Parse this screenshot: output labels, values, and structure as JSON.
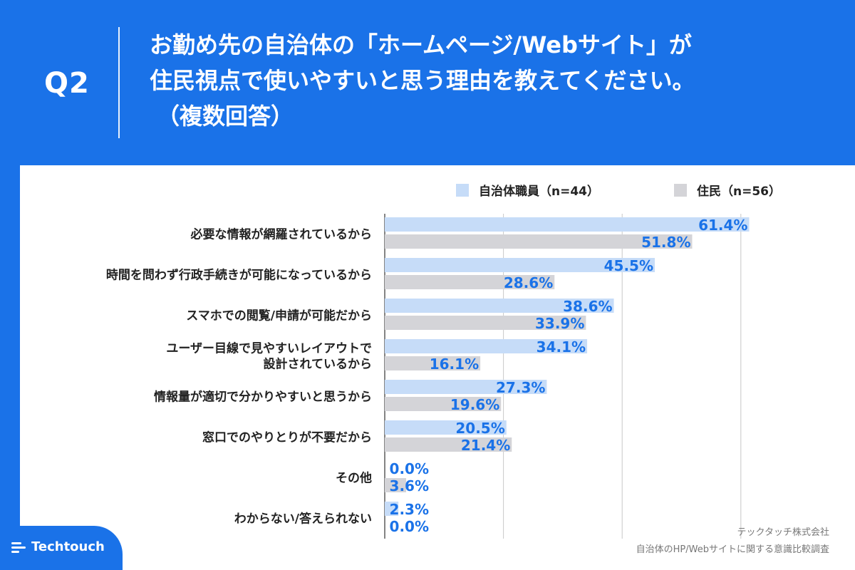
{
  "header": {
    "question_label": "Q2",
    "title_line1": "お勤め先の自治体の「ホームページ/Webサイト」が",
    "title_line2": "住民視点で使いやすいと思う理由を教えてください。",
    "title_line3": "（複数回答）"
  },
  "footer": {
    "logo_text": "Techtouch",
    "source_line1": "テックタッチ株式会社",
    "source_line2": "自治体のHP/Webサイトに関する意識比較調査"
  },
  "colors": {
    "background_blue": "#1a72e8",
    "series1": "#c6dcf8",
    "series2": "#d4d4d8",
    "value_label": "#1a72e8"
  },
  "chart_data": {
    "type": "bar",
    "orientation": "horizontal",
    "legend_position": "top-right",
    "grid": true,
    "xlim": [
      0,
      70
    ],
    "categories": [
      [
        "必要な情報が網羅されているから"
      ],
      [
        "時間を問わず行政手続きが可能になっているから"
      ],
      [
        "スマホでの閲覧/申請が可能だから"
      ],
      [
        "ユーザー目線で見やすいレイアウトで",
        "設計されているから"
      ],
      [
        "情報量が適切で分かりやすいと思うから"
      ],
      [
        "窓口でのやりとりが不要だから"
      ],
      [
        "その他"
      ],
      [
        "わからない/答えられない"
      ]
    ],
    "series": [
      {
        "name": "自治体職員（n=44）",
        "values": [
          61.4,
          45.5,
          38.6,
          34.1,
          27.3,
          20.5,
          0.0,
          2.3
        ]
      },
      {
        "name": "住民（n=56）",
        "values": [
          51.8,
          28.6,
          33.9,
          16.1,
          19.6,
          21.4,
          3.6,
          0.0
        ]
      }
    ],
    "value_suffix": "%"
  }
}
